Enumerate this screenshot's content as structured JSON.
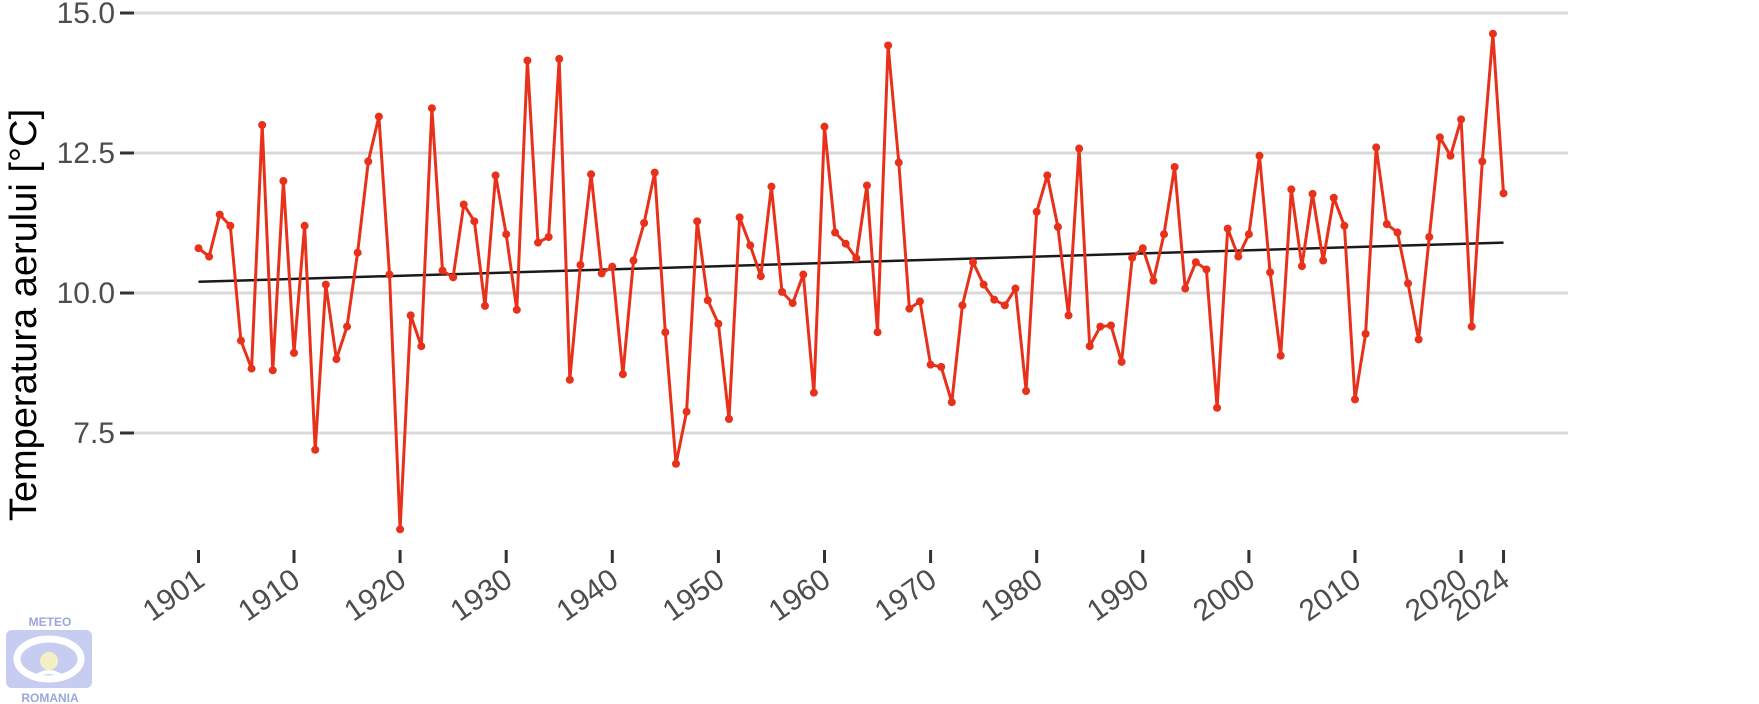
{
  "chart_data": {
    "type": "line",
    "title": "",
    "xlabel": "",
    "ylabel": "Temperatura aerului [°C]",
    "xlim": [
      1899,
      2028
    ],
    "ylim": [
      5.5,
      15.2
    ],
    "yticks": [
      7.5,
      10.0,
      12.5,
      15.0
    ],
    "ytick_labels": [
      "7.5",
      "10.0",
      "12.5",
      "15.0"
    ],
    "xticks": [
      1901,
      1910,
      1920,
      1930,
      1940,
      1950,
      1960,
      1970,
      1980,
      1990,
      2000,
      2010,
      2020,
      2024
    ],
    "xtick_labels": [
      "1901",
      "1910",
      "1920",
      "1930",
      "1940",
      "1950",
      "1960",
      "1970",
      "1980",
      "1990",
      "2000",
      "2010",
      "2020",
      "2024"
    ],
    "grid": "horizontal",
    "legend": "none",
    "series": [
      {
        "kind": "line-with-markers",
        "color": "#e8311a",
        "x": [
          1901,
          1902,
          1903,
          1904,
          1905,
          1906,
          1907,
          1908,
          1909,
          1910,
          1911,
          1912,
          1913,
          1914,
          1915,
          1916,
          1917,
          1918,
          1919,
          1920,
          1921,
          1922,
          1923,
          1924,
          1925,
          1926,
          1927,
          1928,
          1929,
          1930,
          1931,
          1932,
          1933,
          1934,
          1935,
          1936,
          1937,
          1938,
          1939,
          1940,
          1941,
          1942,
          1943,
          1944,
          1945,
          1946,
          1947,
          1948,
          1949,
          1950,
          1951,
          1952,
          1953,
          1954,
          1955,
          1956,
          1957,
          1958,
          1959,
          1960,
          1961,
          1962,
          1963,
          1964,
          1965,
          1966,
          1967,
          1968,
          1969,
          1970,
          1971,
          1972,
          1973,
          1974,
          1975,
          1976,
          1977,
          1978,
          1979,
          1980,
          1981,
          1982,
          1983,
          1984,
          1985,
          1986,
          1987,
          1988,
          1989,
          1990,
          1991,
          1992,
          1993,
          1994,
          1995,
          1996,
          1997,
          1998,
          1999,
          2000,
          2001,
          2002,
          2003,
          2004,
          2005,
          2006,
          2007,
          2008,
          2009,
          2010,
          2011,
          2012,
          2013,
          2014,
          2015,
          2016,
          2017,
          2018,
          2019,
          2020,
          2021,
          2022,
          2023,
          2024
        ],
        "values": [
          10.8,
          10.65,
          11.4,
          11.2,
          9.15,
          8.65,
          13.0,
          8.62,
          12.0,
          8.93,
          11.2,
          7.2,
          10.15,
          8.82,
          9.4,
          10.72,
          12.35,
          13.15,
          10.33,
          5.78,
          9.6,
          9.05,
          13.3,
          10.4,
          10.28,
          11.58,
          11.28,
          9.77,
          12.1,
          11.05,
          9.7,
          14.15,
          10.9,
          11.0,
          14.18,
          8.45,
          10.5,
          12.12,
          10.35,
          10.47,
          8.55,
          10.58,
          11.25,
          12.15,
          9.3,
          6.95,
          7.88,
          11.28,
          9.87,
          9.45,
          7.75,
          11.35,
          10.85,
          10.3,
          11.9,
          10.02,
          9.82,
          10.33,
          8.22,
          12.97,
          11.08,
          10.88,
          10.62,
          11.92,
          9.3,
          14.42,
          12.33,
          9.72,
          9.85,
          8.72,
          8.68,
          8.05,
          9.78,
          10.55,
          10.15,
          9.88,
          9.78,
          10.08,
          8.25,
          11.45,
          12.1,
          11.18,
          9.6,
          12.58,
          9.05,
          9.4,
          9.42,
          8.77,
          10.63,
          10.8,
          10.22,
          11.05,
          12.25,
          10.08,
          10.55,
          10.42,
          7.95,
          11.15,
          10.65,
          11.05,
          12.45,
          10.37,
          8.88,
          11.85,
          10.48,
          11.77,
          10.58,
          11.7,
          11.2,
          8.1,
          9.27,
          12.6,
          11.23,
          11.08,
          10.17,
          9.17,
          11.0,
          12.78,
          12.45,
          13.1,
          9.4,
          12.35,
          14.63,
          11.78
        ]
      },
      {
        "kind": "trend",
        "color": "#1a1a1a",
        "x": [
          1901,
          2024
        ],
        "values": [
          10.2,
          10.9
        ]
      }
    ]
  },
  "logo": {
    "top_text": "METEO",
    "bottom_text": "ROMANIA"
  }
}
